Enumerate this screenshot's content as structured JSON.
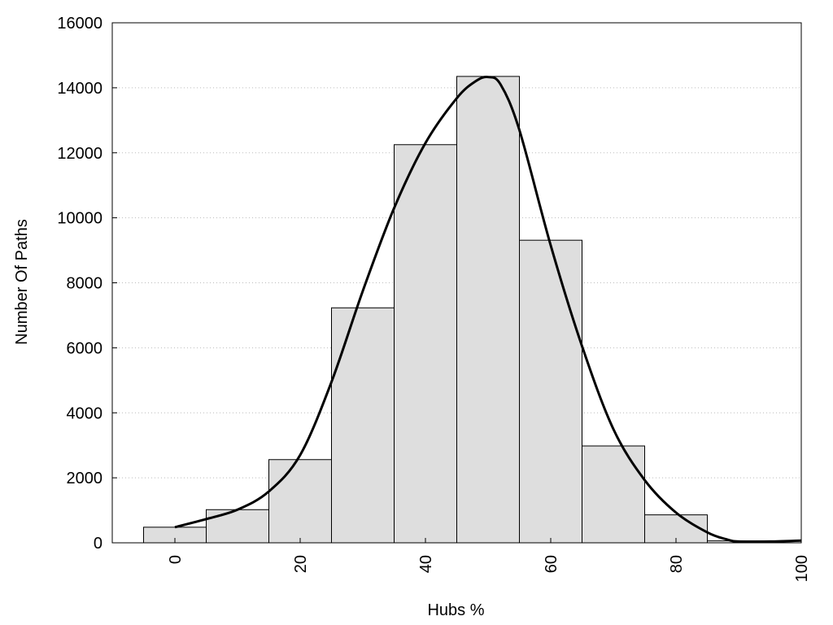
{
  "chart_data": {
    "type": "bar",
    "title": "",
    "xlabel": "Hubs %",
    "ylabel": "Number Of Paths",
    "xlim": [
      -10,
      100
    ],
    "ylim": [
      0,
      16000
    ],
    "x_ticks": [
      0,
      20,
      40,
      60,
      80,
      100
    ],
    "y_ticks": [
      0,
      2000,
      4000,
      6000,
      8000,
      10000,
      12000,
      14000,
      16000
    ],
    "grid": "horizontal dotted",
    "legend": "none",
    "bin_width": 10,
    "bins": [
      {
        "center": 0,
        "value": 480
      },
      {
        "center": 10,
        "value": 1020
      },
      {
        "center": 20,
        "value": 2560
      },
      {
        "center": 30,
        "value": 7230
      },
      {
        "center": 40,
        "value": 12250
      },
      {
        "center": 50,
        "value": 14350
      },
      {
        "center": 60,
        "value": 9310
      },
      {
        "center": 70,
        "value": 2980
      },
      {
        "center": 80,
        "value": 860
      },
      {
        "center": 90,
        "value": 60
      }
    ],
    "curve": {
      "x": [
        0,
        5,
        10,
        15,
        20,
        25,
        30,
        35,
        40,
        45,
        48,
        50,
        52,
        55,
        60,
        65,
        70,
        75,
        80,
        85,
        88,
        90,
        95,
        100
      ],
      "y": [
        480,
        730,
        1020,
        1580,
        2700,
        4950,
        7750,
        10300,
        12300,
        13680,
        14200,
        14330,
        14100,
        12700,
        9150,
        6050,
        3500,
        1930,
        930,
        320,
        110,
        40,
        40,
        70
      ]
    },
    "colors": {
      "bar_fill": "#dedede",
      "bar_stroke": "#000000",
      "curve": "#000000",
      "grid": "#bbbbbb"
    }
  }
}
